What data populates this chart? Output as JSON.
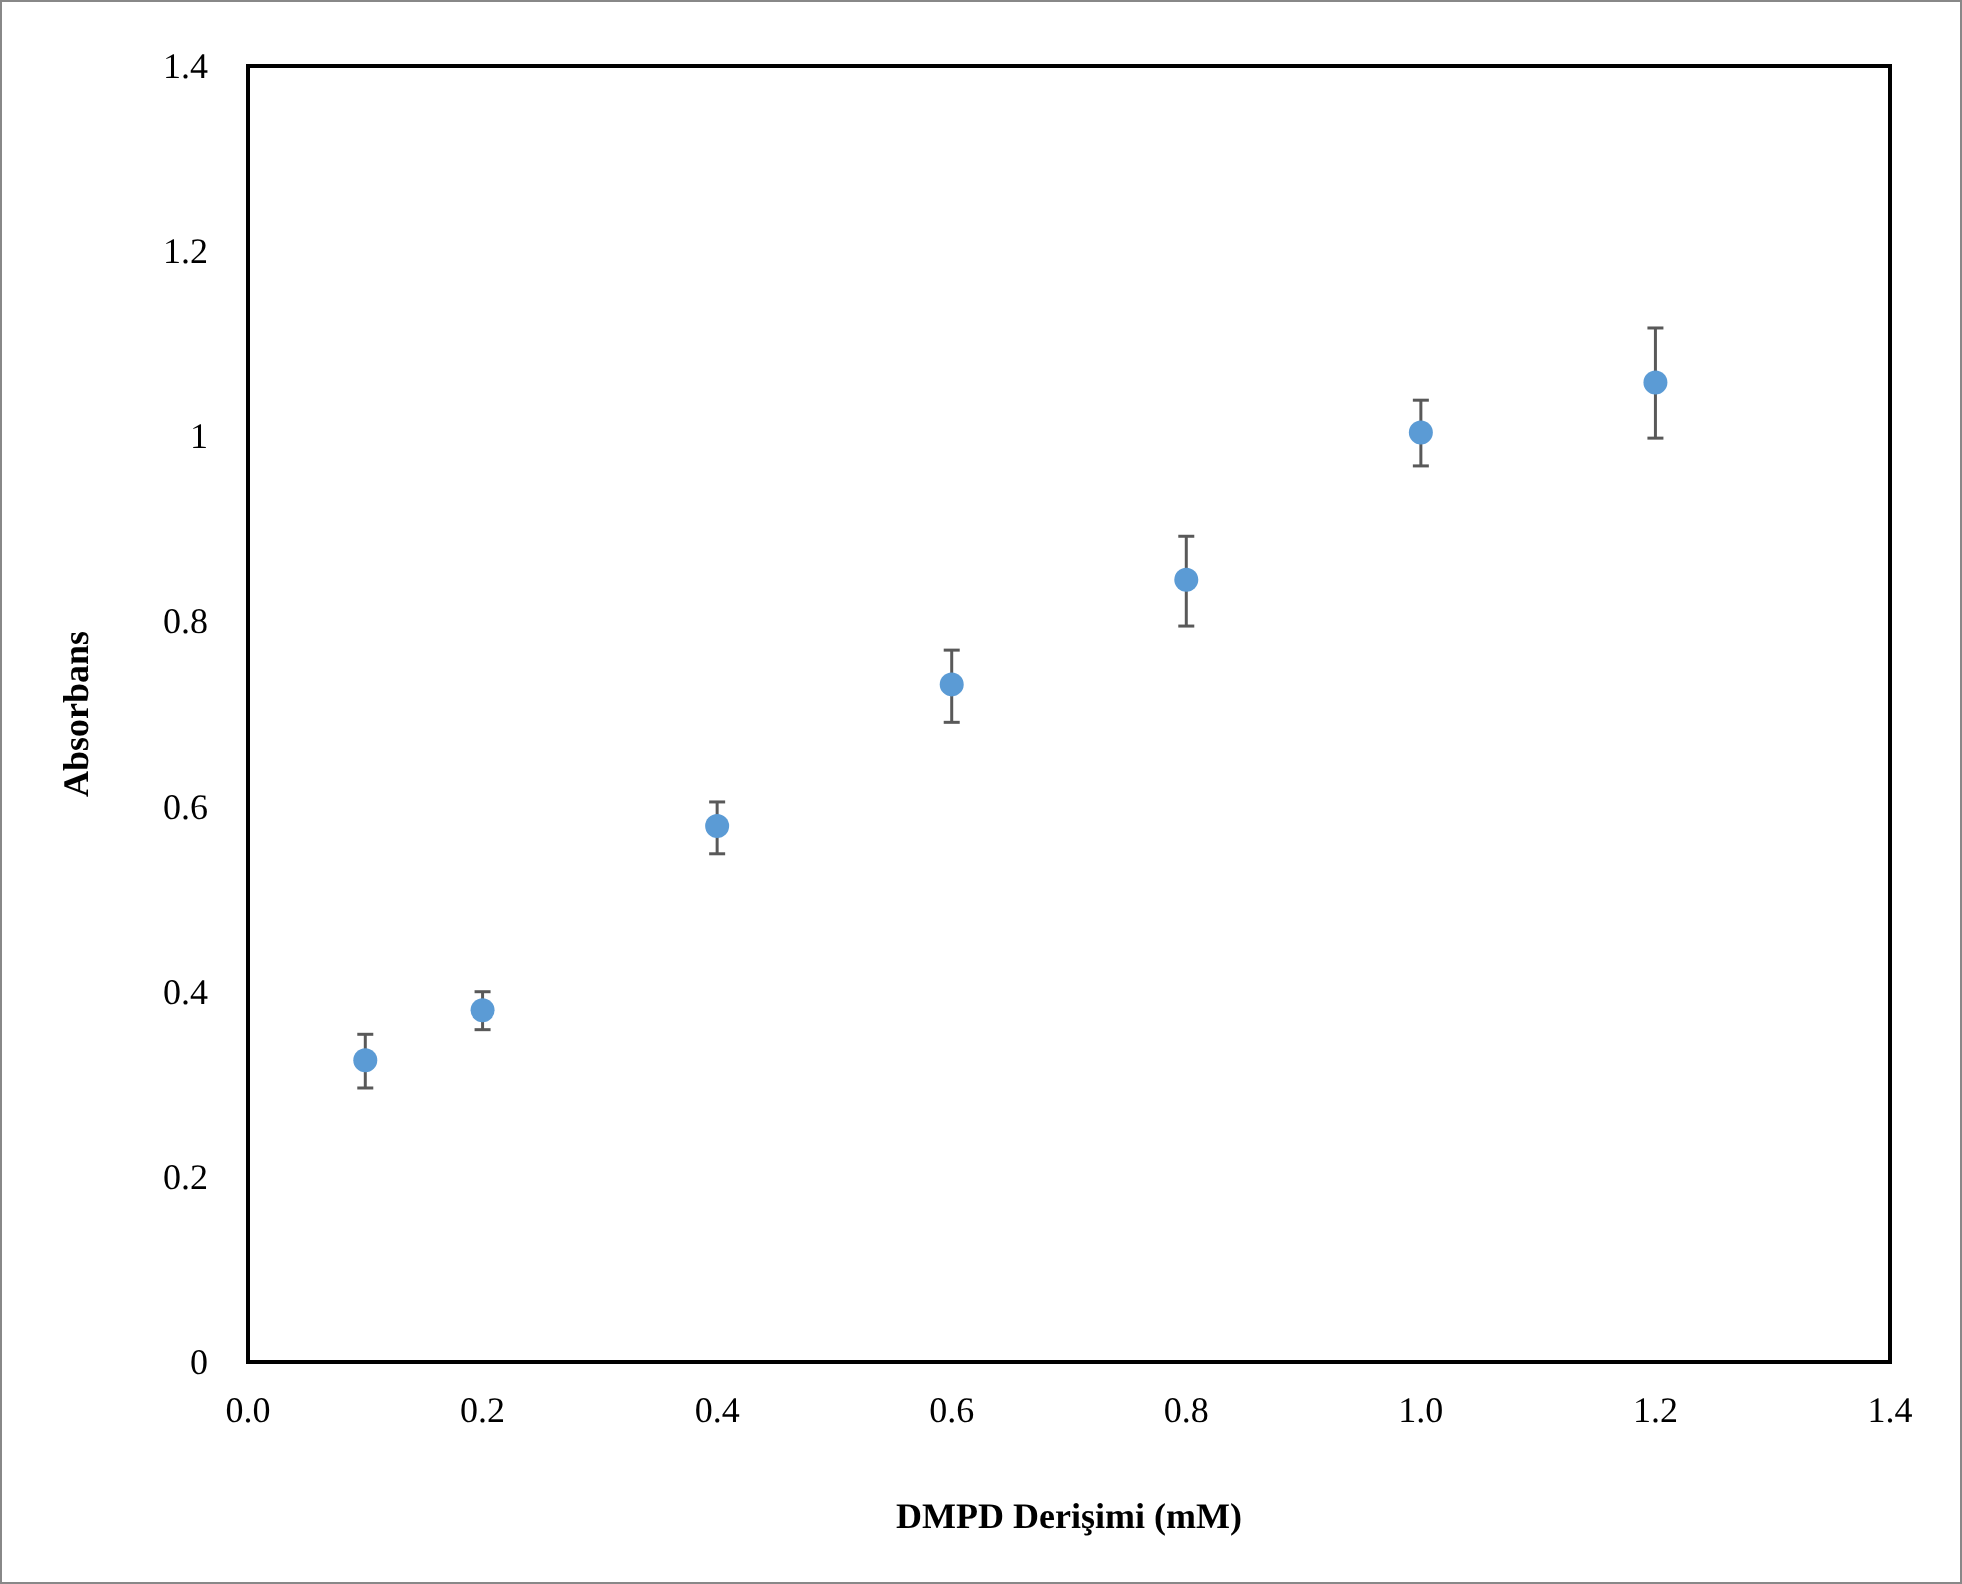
{
  "chart_data": {
    "type": "scatter",
    "xlabel": "DMPD Derişimi  (mM)",
    "ylabel": "Absorbans",
    "x": [
      0.1,
      0.2,
      0.4,
      0.6,
      0.8,
      1.0,
      1.2
    ],
    "series": [
      {
        "color": "#5b9bd5",
        "values": [
          0.326,
          0.38,
          0.579,
          0.732,
          0.845,
          1.004,
          1.058
        ],
        "errors": [
          [
            0.296,
            0.354
          ],
          [
            0.359,
            0.4
          ],
          [
            0.549,
            0.605
          ],
          [
            0.691,
            0.769
          ],
          [
            0.795,
            0.892
          ],
          [
            0.968,
            1.039
          ],
          [
            0.998,
            1.117
          ]
        ]
      }
    ],
    "xlim": [
      0,
      1.4
    ],
    "ylim": [
      0,
      1.4
    ],
    "xticks": [
      {
        "value": 0,
        "label": "0.0"
      },
      0.2,
      0.4,
      0.6,
      0.8,
      {
        "value": 1,
        "label": "1.0"
      },
      1.2,
      1.4
    ],
    "yticks": [
      0,
      0.2,
      0.4,
      0.6,
      0.8,
      1,
      1.2,
      1.4
    ],
    "grid": false,
    "marker": "circle"
  }
}
